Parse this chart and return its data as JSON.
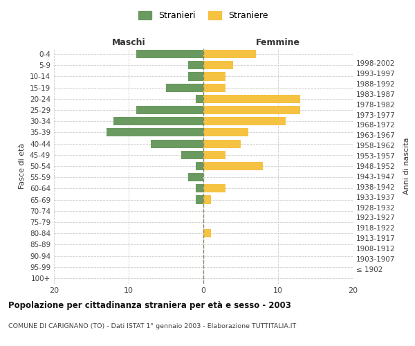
{
  "age_groups": [
    "100+",
    "95-99",
    "90-94",
    "85-89",
    "80-84",
    "75-79",
    "70-74",
    "65-69",
    "60-64",
    "55-59",
    "50-54",
    "45-49",
    "40-44",
    "35-39",
    "30-34",
    "25-29",
    "20-24",
    "15-19",
    "10-14",
    "5-9",
    "0-4"
  ],
  "birth_years": [
    "≤ 1902",
    "1903-1907",
    "1908-1912",
    "1913-1917",
    "1918-1922",
    "1923-1927",
    "1928-1932",
    "1933-1937",
    "1938-1942",
    "1943-1947",
    "1948-1952",
    "1953-1957",
    "1958-1962",
    "1963-1967",
    "1968-1972",
    "1973-1977",
    "1978-1982",
    "1983-1987",
    "1988-1992",
    "1993-1997",
    "1998-2002"
  ],
  "stranieri": [
    0,
    0,
    0,
    0,
    0,
    0,
    0,
    1,
    1,
    2,
    1,
    3,
    7,
    13,
    12,
    9,
    1,
    5,
    2,
    2,
    9
  ],
  "straniere": [
    0,
    0,
    0,
    0,
    1,
    0,
    0,
    1,
    3,
    0,
    8,
    3,
    5,
    6,
    11,
    13,
    13,
    3,
    3,
    4,
    7
  ],
  "stranieri_color": "#6a9a5f",
  "straniere_color": "#f5c242",
  "title": "Popolazione per cittadinanza straniera per età e sesso - 2003",
  "subtitle": "COMUNE DI CARIGNANO (TO) - Dati ISTAT 1° gennaio 2003 - Elaborazione TUTTITALIA.IT",
  "xlabel_left": "Maschi",
  "xlabel_right": "Femmine",
  "ylabel_left": "Fasce di età",
  "ylabel_right": "Anni di nascita",
  "xlim": 20,
  "legend_labels": [
    "Stranieri",
    "Straniere"
  ],
  "bg_color": "#ffffff",
  "grid_color": "#cccccc",
  "center_line_color": "#888870"
}
